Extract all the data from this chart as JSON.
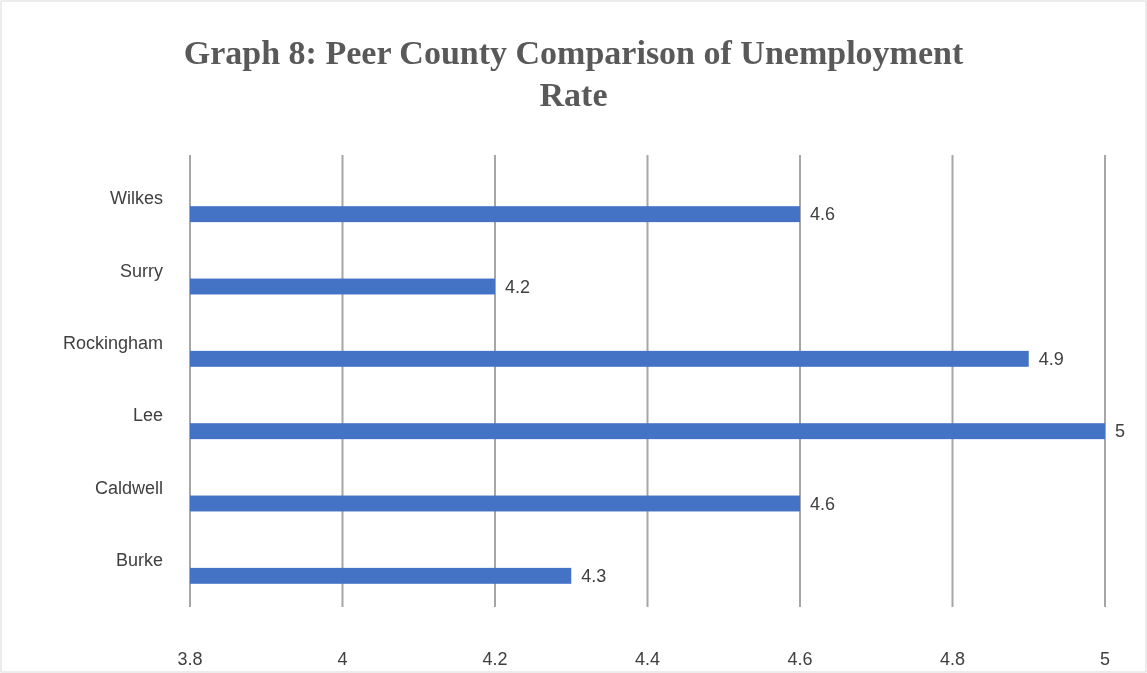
{
  "chart_data": {
    "type": "bar",
    "orientation": "horizontal",
    "title": "Graph 8:  Peer County Comparison of Unemployment Rate",
    "categories": [
      "Wilkes",
      "Surry",
      "Rockingham",
      "Lee",
      "Caldwell",
      "Burke"
    ],
    "values": [
      4.6,
      4.2,
      4.9,
      5,
      4.6,
      4.3
    ],
    "color": "#4472c4",
    "xlim": [
      3.8,
      5
    ],
    "xticks": [
      3.8,
      4,
      4.2,
      4.4,
      4.6,
      4.8,
      5
    ],
    "grid": "x",
    "data_labels": true
  }
}
